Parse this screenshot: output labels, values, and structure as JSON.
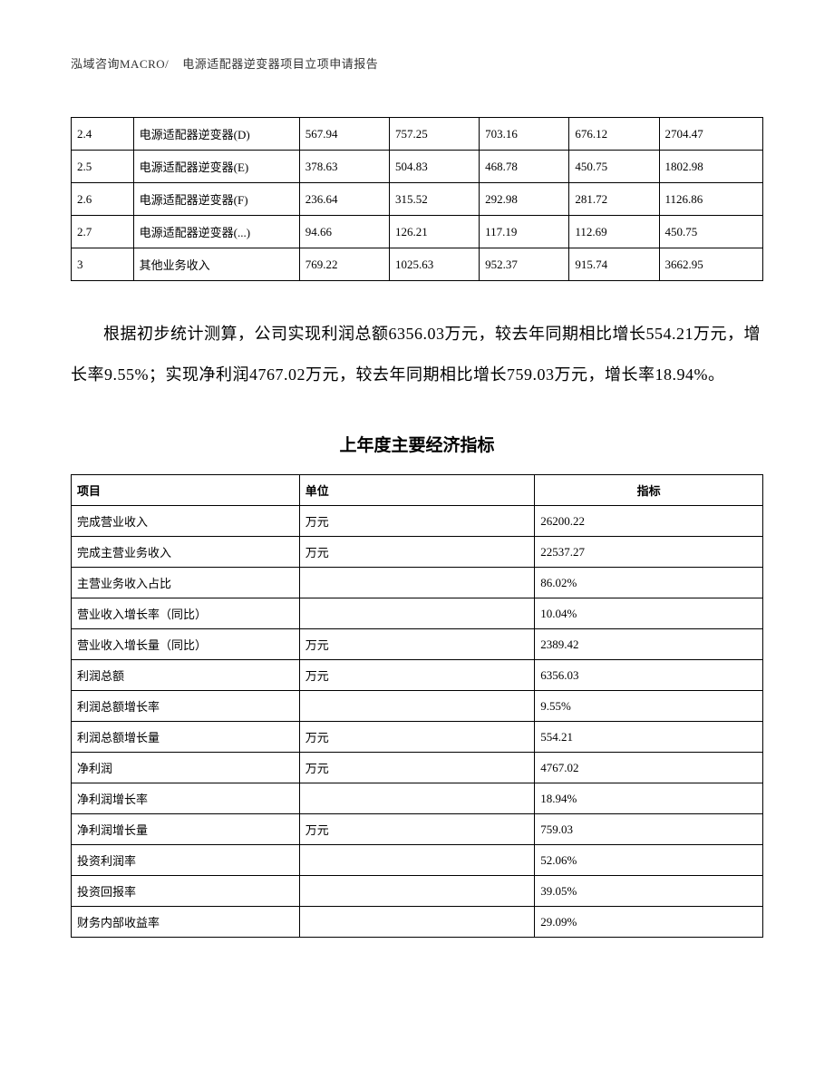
{
  "header": {
    "company": "泓域咨询MACRO/",
    "title": "电源适配器逆变器项目立项申请报告"
  },
  "table1": {
    "col_widths": [
      "9%",
      "24%",
      "13%",
      "13%",
      "13%",
      "13%",
      "15%"
    ],
    "rows": [
      {
        "id": "2.4",
        "name": "电源适配器逆变器(D)",
        "c1": "567.94",
        "c2": "757.25",
        "c3": "703.16",
        "c4": "676.12",
        "total": "2704.47"
      },
      {
        "id": "2.5",
        "name": "电源适配器逆变器(E)",
        "c1": "378.63",
        "c2": "504.83",
        "c3": "468.78",
        "c4": "450.75",
        "total": "1802.98"
      },
      {
        "id": "2.6",
        "name": "电源适配器逆变器(F)",
        "c1": "236.64",
        "c2": "315.52",
        "c3": "292.98",
        "c4": "281.72",
        "total": "1126.86"
      },
      {
        "id": "2.7",
        "name": "电源适配器逆变器(...)",
        "c1": "94.66",
        "c2": "126.21",
        "c3": "117.19",
        "c4": "112.69",
        "total": "450.75"
      },
      {
        "id": "3",
        "name": "其他业务收入",
        "c1": "769.22",
        "c2": "1025.63",
        "c3": "952.37",
        "c4": "915.74",
        "total": "3662.95"
      }
    ]
  },
  "paragraph": {
    "text": "根据初步统计测算，公司实现利润总额6356.03万元，较去年同期相比增长554.21万元，增长率9.55%；实现净利润4767.02万元，较去年同期相比增长759.03万元，增长率18.94%。"
  },
  "table2": {
    "title": "上年度主要经济指标",
    "columns": [
      "项目",
      "单位",
      "指标"
    ],
    "rows": [
      {
        "item": "完成营业收入",
        "unit": "万元",
        "metric": "26200.22"
      },
      {
        "item": "完成主营业务收入",
        "unit": "万元",
        "metric": "22537.27"
      },
      {
        "item": "主营业务收入占比",
        "unit": "",
        "metric": "86.02%"
      },
      {
        "item": "营业收入增长率（同比）",
        "unit": "",
        "metric": "10.04%"
      },
      {
        "item": "营业收入增长量（同比）",
        "unit": "万元",
        "metric": "2389.42"
      },
      {
        "item": "利润总额",
        "unit": "万元",
        "metric": "6356.03"
      },
      {
        "item": "利润总额增长率",
        "unit": "",
        "metric": "9.55%"
      },
      {
        "item": "利润总额增长量",
        "unit": "万元",
        "metric": "554.21"
      },
      {
        "item": "净利润",
        "unit": "万元",
        "metric": "4767.02"
      },
      {
        "item": "净利润增长率",
        "unit": "",
        "metric": "18.94%"
      },
      {
        "item": "净利润增长量",
        "unit": "万元",
        "metric": "759.03"
      },
      {
        "item": "投资利润率",
        "unit": "",
        "metric": "52.06%"
      },
      {
        "item": "投资回报率",
        "unit": "",
        "metric": "39.05%"
      },
      {
        "item": "财务内部收益率",
        "unit": "",
        "metric": "29.09%"
      }
    ]
  }
}
